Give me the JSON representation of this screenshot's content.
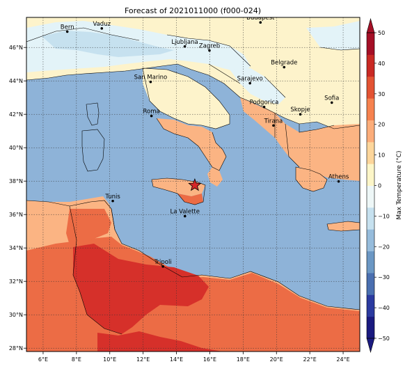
{
  "title": "Forecast of 2021011000 (f000-024)",
  "map": {
    "lat_ticks": [
      "46°N",
      "44°N",
      "42°N",
      "40°N",
      "38°N",
      "36°N",
      "34°N",
      "32°N",
      "30°N",
      "28°N"
    ],
    "lon_ticks": [
      "6°E",
      "8°E",
      "10°E",
      "12°E",
      "14°E",
      "16°E",
      "18°E",
      "20°E",
      "22°E",
      "24°E"
    ],
    "lat_values": [
      46,
      44,
      42,
      40,
      38,
      36,
      34,
      32,
      30,
      28
    ],
    "lon_values": [
      6,
      8,
      10,
      12,
      14,
      16,
      18,
      20,
      22,
      24
    ],
    "extent": {
      "lon_min": 5,
      "lon_max": 25,
      "lat_min": 27.8,
      "lat_max": 47.8
    },
    "gridlines": true,
    "cities": [
      {
        "name": "Bern",
        "lon": 7.45,
        "lat": 46.95
      },
      {
        "name": "Vaduz",
        "lon": 9.52,
        "lat": 47.14
      },
      {
        "name": "Budapest",
        "lon": 19.04,
        "lat": 47.5
      },
      {
        "name": "Ljubljana",
        "lon": 14.5,
        "lat": 46.06
      },
      {
        "name": "Zagreb",
        "lon": 15.98,
        "lat": 45.82
      },
      {
        "name": "Belgrade",
        "lon": 20.46,
        "lat": 44.82
      },
      {
        "name": "San Marino",
        "lon": 12.45,
        "lat": 43.94
      },
      {
        "name": "Sarajevo",
        "lon": 18.41,
        "lat": 43.86
      },
      {
        "name": "Sofia",
        "lon": 23.32,
        "lat": 42.7
      },
      {
        "name": "Podgorica",
        "lon": 19.26,
        "lat": 42.44
      },
      {
        "name": "Skopje",
        "lon": 21.43,
        "lat": 42.0
      },
      {
        "name": "Roma",
        "lon": 12.5,
        "lat": 41.9
      },
      {
        "name": "Tirana",
        "lon": 19.82,
        "lat": 41.33
      },
      {
        "name": "Athens",
        "lon": 23.73,
        "lat": 37.98
      },
      {
        "name": "Tunis",
        "lon": 10.18,
        "lat": 36.81
      },
      {
        "name": "La Valette",
        "lon": 14.51,
        "lat": 35.9
      },
      {
        "name": "Tripoli",
        "lon": 13.19,
        "lat": 32.89
      }
    ],
    "star": {
      "lon": 15.1,
      "lat": 37.75,
      "color": "#d62728"
    }
  },
  "colorbar": {
    "label": "Max Temperature (°C)",
    "ticks": [
      "50",
      "40",
      "30",
      "20",
      "10",
      "0",
      "−10",
      "−20",
      "−30",
      "−40",
      "−50"
    ],
    "tick_values": [
      50,
      40,
      30,
      20,
      10,
      0,
      -10,
      -20,
      -30,
      -40,
      -50
    ],
    "min": -50,
    "max": 50,
    "colors": [
      "#1a1a80",
      "#2b3aa0",
      "#4a6fb0",
      "#6b97c4",
      "#96bcdc",
      "#c6e1ef",
      "#eef7f7",
      "#fdf6c8",
      "#fdd69b",
      "#fcad7a",
      "#f6824f",
      "#e35333",
      "#c92924",
      "#a50f26"
    ]
  },
  "legend_colors": {
    "sea": "#8eb3d8",
    "cold_land": "#e3f3f8",
    "mild_land": "#fdf3cb",
    "warm_land": "#fbb483",
    "hot_land": "#f7a07a",
    "hotter_land": "#ec6c45",
    "hottest_land": "#d6302a"
  }
}
